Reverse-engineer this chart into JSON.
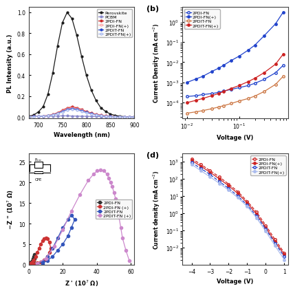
{
  "pl_wavelength": [
    680,
    690,
    700,
    710,
    720,
    730,
    740,
    750,
    760,
    770,
    780,
    790,
    800,
    810,
    820,
    830,
    840,
    850,
    860,
    870,
    880,
    890,
    900
  ],
  "pl_perovskite": [
    0.01,
    0.02,
    0.05,
    0.1,
    0.22,
    0.42,
    0.68,
    0.9,
    1.0,
    0.94,
    0.78,
    0.58,
    0.4,
    0.26,
    0.16,
    0.09,
    0.055,
    0.03,
    0.016,
    0.009,
    0.005,
    0.003,
    0.001
  ],
  "pl_pcbm": [
    0.005,
    0.006,
    0.007,
    0.008,
    0.009,
    0.01,
    0.011,
    0.012,
    0.012,
    0.011,
    0.01,
    0.009,
    0.008,
    0.007,
    0.006,
    0.005,
    0.004,
    0.003,
    0.003,
    0.002,
    0.002,
    0.001,
    0.001
  ],
  "pl_2pdi_fn": [
    0.005,
    0.006,
    0.008,
    0.011,
    0.016,
    0.026,
    0.042,
    0.065,
    0.088,
    0.098,
    0.09,
    0.073,
    0.055,
    0.04,
    0.028,
    0.019,
    0.012,
    0.008,
    0.005,
    0.003,
    0.002,
    0.001,
    0.001
  ],
  "pl_2pdi_fn_plus": [
    0.005,
    0.006,
    0.008,
    0.011,
    0.015,
    0.024,
    0.038,
    0.059,
    0.08,
    0.089,
    0.082,
    0.067,
    0.05,
    0.036,
    0.025,
    0.017,
    0.011,
    0.007,
    0.004,
    0.003,
    0.002,
    0.001,
    0.001
  ],
  "pl_2pdit_fn": [
    0.005,
    0.006,
    0.007,
    0.01,
    0.014,
    0.022,
    0.035,
    0.054,
    0.072,
    0.081,
    0.074,
    0.06,
    0.045,
    0.032,
    0.022,
    0.015,
    0.009,
    0.006,
    0.004,
    0.002,
    0.001,
    0.001,
    0.001
  ],
  "pl_2pdit_fn_plus": [
    0.005,
    0.005,
    0.007,
    0.009,
    0.013,
    0.02,
    0.032,
    0.049,
    0.066,
    0.073,
    0.068,
    0.055,
    0.041,
    0.029,
    0.02,
    0.013,
    0.008,
    0.005,
    0.003,
    0.002,
    0.001,
    0.001,
    0.001
  ],
  "jv_voltage_b": [
    0.01,
    0.015,
    0.02,
    0.03,
    0.04,
    0.05,
    0.07,
    0.1,
    0.15,
    0.2,
    0.3,
    0.5,
    0.7
  ],
  "jv_2pdi_fn_b": [
    0.0002,
    0.00022,
    0.00025,
    0.00028,
    0.00032,
    0.00037,
    0.00045,
    0.00055,
    0.0007,
    0.0009,
    0.0014,
    0.003,
    0.007
  ],
  "jv_2pdi_fn_plus_b": [
    0.001,
    0.0015,
    0.002,
    0.0035,
    0.005,
    0.007,
    0.012,
    0.02,
    0.04,
    0.07,
    0.2,
    0.8,
    3.0
  ],
  "jv_2pdit_fn_b": [
    3e-05,
    3.5e-05,
    4e-05,
    5e-05,
    6e-05,
    7e-05,
    9e-05,
    0.00012,
    0.00016,
    0.00021,
    0.00035,
    0.0008,
    0.002
  ],
  "jv_2pdit_fn_plus_b": [
    0.0001,
    0.00013,
    0.00016,
    0.00022,
    0.00028,
    0.00035,
    0.0005,
    0.0007,
    0.0011,
    0.0016,
    0.003,
    0.008,
    0.025
  ],
  "eis_zprime_2pdi_fn": [
    0.5,
    1.0,
    1.5,
    2.0,
    2.5,
    3.0,
    3.3,
    3.5,
    3.3,
    3.0,
    2.5,
    2.0,
    1.5
  ],
  "eis_zimag_2pdi_fn": [
    0.1,
    0.3,
    0.6,
    1.0,
    1.5,
    2.0,
    2.5,
    2.0,
    1.5,
    1.0,
    0.6,
    0.3,
    0.1
  ],
  "eis_zprime_2pdi_fn_plus": [
    0.5,
    1,
    2,
    3,
    4,
    5,
    6,
    7,
    8,
    9,
    10,
    11,
    12,
    13,
    12,
    11,
    9,
    7,
    5,
    3,
    1
  ],
  "eis_zimag_2pdi_fn_plus": [
    0.1,
    0.3,
    0.7,
    1.2,
    2.0,
    3.0,
    4.0,
    5.0,
    5.8,
    6.3,
    6.5,
    6.3,
    5.5,
    4.0,
    3.0,
    2.0,
    1.2,
    0.7,
    0.4,
    0.2,
    0.1
  ],
  "eis_zprime_2pdit_fn": [
    5,
    8,
    11,
    14,
    17,
    20,
    23,
    25,
    27,
    25,
    23,
    20,
    17,
    14,
    11,
    8
  ],
  "eis_zimag_2pdit_fn": [
    0.2,
    0.8,
    2.0,
    4.0,
    6.5,
    9.0,
    11.0,
    12.0,
    11.0,
    9.0,
    7.0,
    5.0,
    3.5,
    2.0,
    1.0,
    0.3
  ],
  "eis_zprime_2pdit_fn_plus": [
    5,
    10,
    15,
    20,
    25,
    30,
    35,
    38,
    40,
    42,
    44,
    46,
    47,
    48,
    49,
    50,
    51,
    52,
    53,
    54,
    55,
    57,
    59
  ],
  "eis_zimag_2pdit_fn_plus": [
    0.3,
    1.5,
    4.5,
    8.5,
    13.0,
    17.0,
    20.5,
    22.0,
    22.8,
    23.0,
    22.8,
    22.0,
    21.0,
    20.0,
    19.0,
    17.5,
    16.0,
    14.0,
    11.5,
    9.0,
    6.5,
    3.5,
    1.0
  ],
  "jv_voltage_d": [
    -4.0,
    -3.5,
    -3.0,
    -2.5,
    -2.0,
    -1.5,
    -1.0,
    -0.5,
    0.0,
    0.5,
    1.0
  ],
  "jv_2pdi_fn_d": [
    1500.0,
    700.0,
    300.0,
    130.0,
    50.0,
    18.0,
    5.0,
    1.2,
    0.2,
    0.03,
    0.005
  ],
  "jv_2pdi_fn_plus_d": [
    1200.0,
    550.0,
    240.0,
    100.0,
    40.0,
    14.0,
    4.0,
    0.9,
    0.15,
    0.022,
    0.004
  ],
  "jv_2pdit_fn_d": [
    900.0,
    400.0,
    180.0,
    70.0,
    28.0,
    10.0,
    3.0,
    0.7,
    0.12,
    0.018,
    0.003
  ],
  "jv_2pdit_fn_plus_d": [
    700.0,
    300.0,
    130.0,
    55.0,
    22.0,
    8.0,
    2.5,
    0.55,
    0.09,
    0.013,
    0.002
  ],
  "color_perovskite": "#1a1a1a",
  "color_pcbm": "#8888cc",
  "color_2pdi_fn_red": "#cc2222",
  "color_2pdi_fn_plus_red": "#ffaaaa",
  "color_2pdit_fn_blue": "#2244cc",
  "color_2pdit_fn_plus_blue": "#aabbee",
  "color_2pdi_fn_b_blue": "#2244cc",
  "color_2pdi_fn_plus_b_blue": "#2244cc",
  "color_2pdit_fn_b_orange": "#cc7744",
  "color_2pdit_fn_plus_b_red": "#cc2222",
  "color_2pdi_fn_eis_dark": "#333333",
  "color_2pdi_fn_plus_eis_red": "#cc3333",
  "color_2pdit_fn_eis_blue": "#3355bb",
  "color_2pdit_fn_plus_eis_pink": "#cc88cc",
  "bg_color": "#ffffff",
  "panel_b_label": "(b)",
  "panel_d_label": "(d)"
}
